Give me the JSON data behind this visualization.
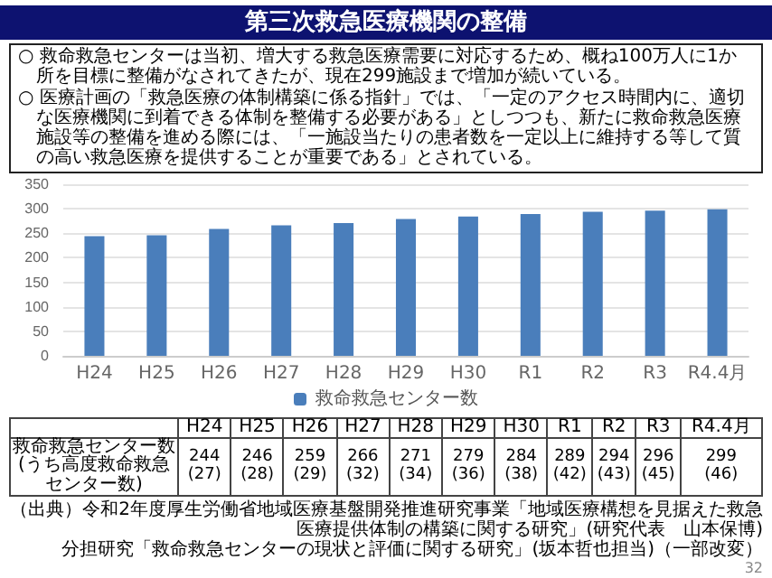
{
  "chart_data": {
    "type": "bar",
    "title": "第三次救急医療機関の整備",
    "annotations": [
      "○ 救命救急センターは当初、増大する救急医療需要に対応するため、概ね100万人に1か所を目標に整備がなされてきたが、現在299施設まで増加が続いている。",
      "○ 医療計画の「救急医療の体制構築に係る指針」では、「一定のアクセス時間内に、適切な医療機関に到着できる体制を整備する必要がある」としつつも、新たに救命救急医療施設等の整備を進める際には、「一施設当たりの患者数を一定以上に維持する等して質の高い救急医療を提供することが重要である」とされている。",
      "救命救急センター数\n(うち高度救命救急センター数)",
      "（出典）令和2年度厚生労働省地域医療基盤開発推進研究事業「地域医療構想を見据えた救急医療提供体制の構築に関する研究」(研究代表　山本保博)",
      "分担研究「救命救急センターの現状と評価に関する研究」(坂本哲也担当)（一部改変）",
      "32"
    ],
    "categories": [
      "H24",
      "H25",
      "H26",
      "H27",
      "H28",
      "H29",
      "H30",
      "R1",
      "R2",
      "R3",
      "R4.4月"
    ],
    "series": [
      {
        "name": "救命救急センター数",
        "color": "#4a7ebb",
        "values": [
          244,
          246,
          259,
          266,
          271,
          279,
          284,
          289,
          294,
          296,
          299
        ]
      }
    ],
    "value_labels": [
      "244\n(27)",
      "246\n(28)",
      "259\n(29)",
      "266\n(32)",
      "271\n(34)",
      "279\n(36)",
      "284\n(38)",
      "289\n(42)",
      "294\n(43)",
      "296\n(45)",
      "299\n(46)"
    ],
    "ylim": [
      0,
      350
    ],
    "yticks": [
      0,
      50,
      100,
      150,
      200,
      250,
      300,
      350
    ],
    "grid": "y",
    "legend": "bottom"
  }
}
